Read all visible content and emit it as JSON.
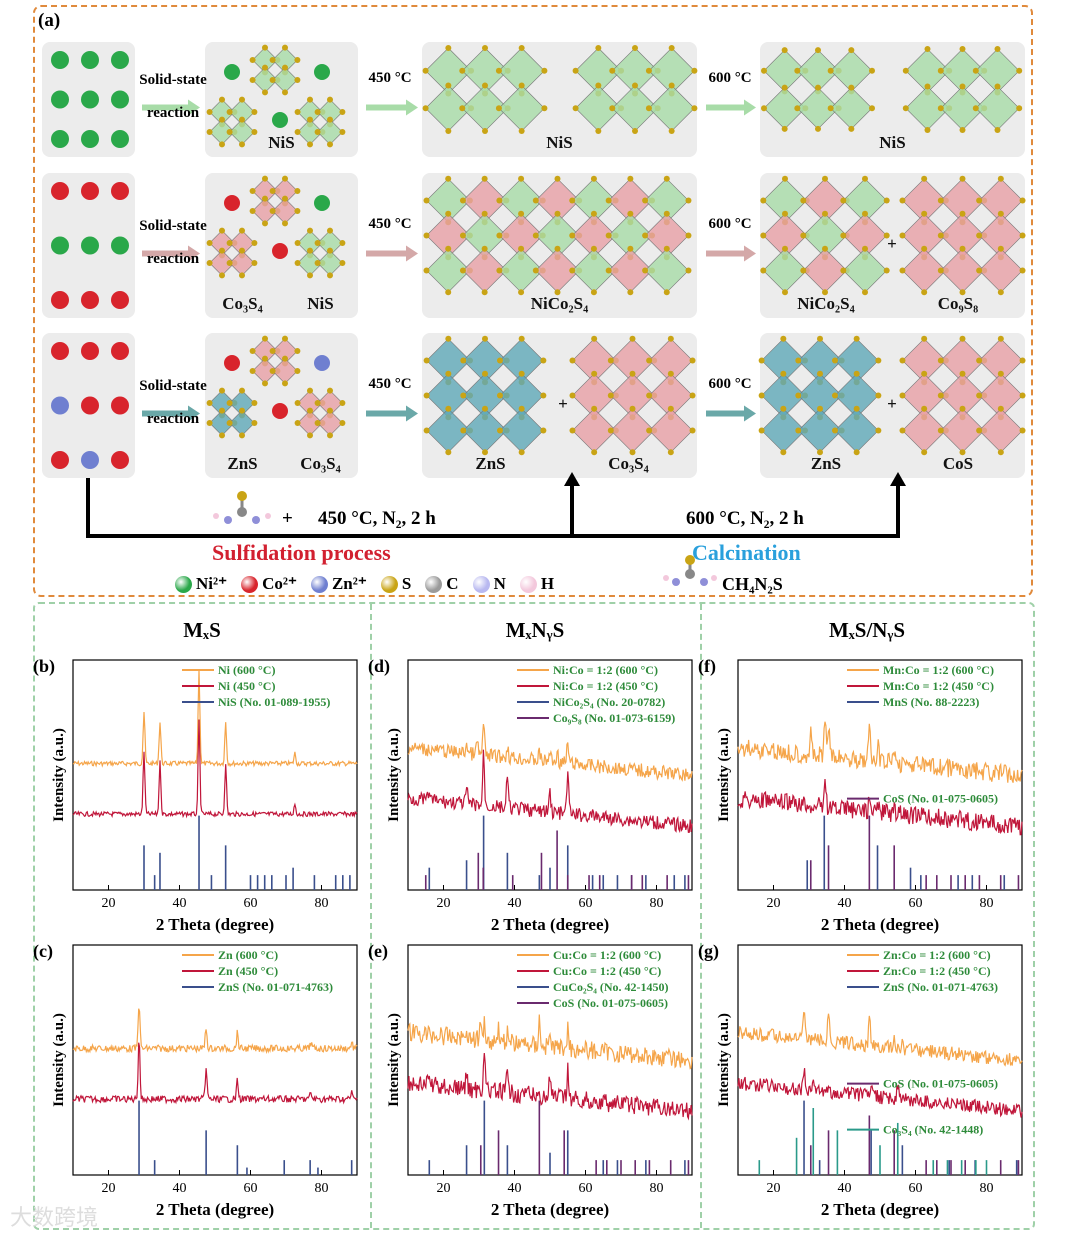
{
  "panel_a": {
    "letter": "(a)",
    "rows": [
      {
        "reaction": [
          "Solid-state",
          "reaction"
        ],
        "t1": "450 °C",
        "t2": "600 °C",
        "mid": [
          "NiS"
        ],
        "c450": [
          "NiS"
        ],
        "c600": [
          "NiS"
        ],
        "color450": "green",
        "color600": "green"
      },
      {
        "reaction": [
          "Solid-state",
          "reaction"
        ],
        "t1": "450 °C",
        "t2": "600 °C",
        "mid": [
          "Co₃S₄",
          "NiS"
        ],
        "c450": [
          "NiCo₂S₄"
        ],
        "c600": [
          "NiCo₂S₄",
          "Co₉S₈"
        ],
        "color450": "mix",
        "color600": "mix"
      },
      {
        "reaction": [
          "Solid-state",
          "reaction"
        ],
        "t1": "450 °C",
        "t2": "600 °C",
        "mid": [
          "ZnS",
          "Co₃S₄"
        ],
        "c450": [
          "ZnS",
          "Co₃S₄"
        ],
        "c600": [
          "ZnS",
          "CoS"
        ],
        "color450": "teal",
        "color600": "teal"
      }
    ],
    "plus": "+",
    "cond1": "450 °C, N₂, 2 h",
    "cond2": "600 °C, N₂, 2 h",
    "sulfidation": "Sulfidation process",
    "calcination": "Calcination",
    "legend": [
      {
        "label": "Ni²⁺",
        "color": "#2aa84a"
      },
      {
        "label": "Co²⁺",
        "color": "#d8242c"
      },
      {
        "label": "Zn²⁺",
        "color": "#6f7fd0"
      },
      {
        "label": "S",
        "color": "#c9a415"
      },
      {
        "label": "C",
        "color": "#9a9a9a"
      },
      {
        "label": "N",
        "color": "#b8b8f0"
      },
      {
        "label": "H",
        "color": "#f3c8dc"
      }
    ],
    "formula": "CH₄N₂S"
  },
  "columns": [
    "MₓS",
    "MₓNᵧS",
    "MₓS/NᵧS"
  ],
  "chart_data": [
    {
      "letter": "(b)",
      "type": "line",
      "xlabel": "2 Theta (degree)",
      "ylabel": "Intensity (a.u.)",
      "xlim": [
        10,
        90
      ],
      "xticks": [
        20,
        40,
        60,
        80
      ],
      "legend": [
        "Ni (600 °C)",
        "Ni (450 °C)",
        "NiS (No. 01-089-1955)"
      ],
      "series": [
        {
          "name": "Ni (600 °C)",
          "peaks": [
            [
              30,
              0.5
            ],
            [
              34.5,
              0.4
            ],
            [
              45.5,
              0.9
            ],
            [
              53,
              0.4
            ],
            [
              72.5,
              0.1
            ]
          ],
          "noise": 0.01
        },
        {
          "name": "Ni (450 °C)",
          "peaks": [
            [
              30,
              0.6
            ],
            [
              34.5,
              0.5
            ],
            [
              45.5,
              0.9
            ],
            [
              53,
              0.5
            ],
            [
              72.5,
              0.1
            ]
          ],
          "noise": 0.01
        }
      ],
      "refs": [
        {
          "name": "NiS",
          "color": "#3a4f8c",
          "pos": [
            [
              30,
              0.6
            ],
            [
              33,
              0.2
            ],
            [
              34.5,
              0.5
            ],
            [
              45.5,
              1
            ],
            [
              49,
              0.2
            ],
            [
              53,
              0.6
            ],
            [
              60,
              0.2
            ],
            [
              62,
              0.2
            ],
            [
              64,
              0.2
            ],
            [
              66,
              0.2
            ],
            [
              70,
              0.2
            ],
            [
              72,
              0.3
            ],
            [
              78,
              0.2
            ],
            [
              84,
              0.2
            ],
            [
              86,
              0.2
            ],
            [
              88,
              0.2
            ]
          ]
        }
      ]
    },
    {
      "letter": "(c)",
      "type": "line",
      "xlabel": "2 Theta (degree)",
      "ylabel": "Intensity (a.u.)",
      "xlim": [
        10,
        90
      ],
      "xticks": [
        20,
        40,
        60,
        80
      ],
      "legend": [
        "Zn (600 °C)",
        "Zn (450 °C)",
        "ZnS (No. 01-071-4763)"
      ],
      "series": [
        {
          "name": "Zn (600 °C)",
          "peaks": [
            [
              28.6,
              0.45
            ],
            [
              47.5,
              0.2
            ],
            [
              56.3,
              0.15
            ],
            [
              77,
              0.06
            ],
            [
              88.5,
              0.06
            ]
          ],
          "noise": 0.015
        },
        {
          "name": "Zn (450 °C)",
          "peaks": [
            [
              28.6,
              0.6
            ],
            [
              47.5,
              0.3
            ],
            [
              56.3,
              0.18
            ],
            [
              77,
              0.06
            ],
            [
              88.5,
              0.06
            ]
          ],
          "noise": 0.015
        }
      ],
      "refs": [
        {
          "name": "ZnS",
          "color": "#3a4f8c",
          "pos": [
            [
              28.6,
              1
            ],
            [
              33,
              0.2
            ],
            [
              47.5,
              0.6
            ],
            [
              56.3,
              0.4
            ],
            [
              59,
              0.1
            ],
            [
              69.5,
              0.2
            ],
            [
              76.8,
              0.2
            ],
            [
              79,
              0.1
            ],
            [
              88.5,
              0.2
            ]
          ]
        }
      ]
    },
    {
      "letter": "(d)",
      "type": "line",
      "xlabel": "2 Theta (degree)",
      "ylabel": "Intensity (a.u.)",
      "xlim": [
        10,
        90
      ],
      "xticks": [
        20,
        40,
        60,
        80
      ],
      "legend": [
        "Ni:Co = 1:2 (600 °C)",
        "Ni:Co = 1:2 (450 °C)",
        "NiCo₂S₄ (No. 20-0782)",
        "Co₉S₈ (No. 01-073-6159)"
      ],
      "series": [
        {
          "name": "Ni:Co = 1:2 (600 °C)",
          "peaks": [
            [
              26.5,
              0.1
            ],
            [
              29.5,
              0.12
            ],
            [
              31.3,
              0.3
            ],
            [
              38,
              0.1
            ],
            [
              47,
              0.08
            ],
            [
              50,
              0.1
            ],
            [
              52,
              0.1
            ],
            [
              55,
              0.2
            ]
          ],
          "noise": 0.03
        },
        {
          "name": "Ni:Co = 1:2 (450 °C)",
          "peaks": [
            [
              16,
              0.1
            ],
            [
              26.5,
              0.15
            ],
            [
              31.3,
              0.5
            ],
            [
              38,
              0.3
            ],
            [
              50,
              0.2
            ],
            [
              55,
              0.45
            ]
          ],
          "noise": 0.03
        }
      ],
      "refs": [
        {
          "name": "NiCo₂S₄",
          "color": "#3a4f8c",
          "pos": [
            [
              16,
              0.3
            ],
            [
              26.5,
              0.4
            ],
            [
              31.3,
              1
            ],
            [
              38,
              0.5
            ],
            [
              47,
              0.2
            ],
            [
              50,
              0.3
            ],
            [
              55,
              0.6
            ],
            [
              62,
              0.2
            ],
            [
              65,
              0.2
            ],
            [
              69,
              0.2
            ],
            [
              73,
              0.2
            ],
            [
              77,
              0.2
            ],
            [
              85,
              0.2
            ],
            [
              88,
              0.2
            ]
          ]
        },
        {
          "name": "Co₉S₈",
          "color": "#6a2a6e",
          "pos": [
            [
              15,
              0.2
            ],
            [
              29.8,
              0.5
            ],
            [
              31.2,
              0.3
            ],
            [
              39.5,
              0.2
            ],
            [
              47.6,
              0.5
            ],
            [
              52,
              0.8
            ],
            [
              55,
              0.2
            ],
            [
              61,
              0.2
            ],
            [
              64,
              0.2
            ],
            [
              73,
              0.2
            ],
            [
              76,
              0.2
            ],
            [
              83,
              0.2
            ],
            [
              89,
              0.2
            ]
          ]
        }
      ]
    },
    {
      "letter": "(e)",
      "type": "line",
      "xlabel": "2 Theta (degree)",
      "ylabel": "Intensity (a.u.)",
      "xlim": [
        10,
        90
      ],
      "xticks": [
        20,
        40,
        60,
        80
      ],
      "legend": [
        "Cu:Co = 1:2 (600 °C)",
        "Cu:Co = 1:2 (450 °C)",
        "CuCo₂S₄ (No. 42-1450)",
        "CoS (No. 01-075-0605)"
      ],
      "series": [
        {
          "name": "Cu:Co = 1:2 (600 °C)",
          "peaks": [
            [
              26.5,
              0.1
            ],
            [
              30.5,
              0.15
            ],
            [
              31.5,
              0.2
            ],
            [
              35.5,
              0.15
            ],
            [
              38,
              0.1
            ],
            [
              47,
              0.25
            ],
            [
              50,
              0.1
            ],
            [
              55,
              0.2
            ]
          ],
          "noise": 0.04
        },
        {
          "name": "Cu:Co = 1:2 (450 °C)",
          "peaks": [
            [
              16,
              0.1
            ],
            [
              26.5,
              0.15
            ],
            [
              31.5,
              0.45
            ],
            [
              38,
              0.2
            ],
            [
              50,
              0.2
            ],
            [
              55,
              0.3
            ]
          ],
          "noise": 0.04
        }
      ],
      "refs": [
        {
          "name": "CuCo₂S₄",
          "color": "#3a4f8c",
          "pos": [
            [
              16,
              0.2
            ],
            [
              26.5,
              0.4
            ],
            [
              31.5,
              1
            ],
            [
              38,
              0.4
            ],
            [
              50,
              0.3
            ],
            [
              55,
              0.6
            ],
            [
              65,
              0.2
            ],
            [
              69,
              0.2
            ],
            [
              77,
              0.2
            ],
            [
              88,
              0.2
            ]
          ]
        },
        {
          "name": "CoS",
          "color": "#6a2a6e",
          "pos": [
            [
              30.5,
              0.4
            ],
            [
              35.5,
              0.6
            ],
            [
              47,
              1
            ],
            [
              54,
              0.6
            ],
            [
              63,
              0.2
            ],
            [
              66,
              0.2
            ],
            [
              70,
              0.2
            ],
            [
              74,
              0.2
            ],
            [
              78,
              0.2
            ],
            [
              84,
              0.2
            ],
            [
              89,
              0.2
            ]
          ]
        }
      ]
    },
    {
      "letter": "(f)",
      "type": "line",
      "xlabel": "2 Theta (degree)",
      "ylabel": "Intensity (a.u.)",
      "xlim": [
        10,
        90
      ],
      "xticks": [
        20,
        40,
        60,
        80
      ],
      "legend": [
        "Mn:Co = 1:2 (600 °C)",
        "Mn:Co = 1:2 (450 °C)",
        "MnS (No. 88-2223)",
        "CoS (No. 01-075-0605)"
      ],
      "series": [
        {
          "name": "Mn:Co = 1:2 (600 °C)",
          "peaks": [
            [
              30.5,
              0.2
            ],
            [
              34.5,
              0.35
            ],
            [
              35.5,
              0.3
            ],
            [
              47,
              0.35
            ],
            [
              49.5,
              0.15
            ],
            [
              54,
              0.15
            ]
          ],
          "noise": 0.04
        },
        {
          "name": "Mn:Co = 1:2 (450 °C)",
          "peaks": [
            [
              34.5,
              0.35
            ],
            [
              47,
              0.1
            ],
            [
              49.5,
              0.08
            ],
            [
              54,
              0.05
            ]
          ],
          "noise": 0.04
        }
      ],
      "refs": [
        {
          "name": "MnS",
          "color": "#3a4f8c",
          "pos": [
            [
              29.5,
              0.4
            ],
            [
              34.3,
              1
            ],
            [
              49.3,
              0.6
            ],
            [
              58.6,
              0.3
            ],
            [
              61.5,
              0.2
            ],
            [
              72,
              0.2
            ],
            [
              76,
              0.2
            ],
            [
              85,
              0.2
            ]
          ]
        },
        {
          "name": "CoS",
          "color": "#6a2a6e",
          "pos": [
            [
              30.5,
              0.4
            ],
            [
              35.5,
              0.6
            ],
            [
              47,
              1
            ],
            [
              54,
              0.6
            ],
            [
              63,
              0.2
            ],
            [
              66,
              0.2
            ],
            [
              70,
              0.2
            ],
            [
              74,
              0.2
            ],
            [
              78,
              0.2
            ],
            [
              84,
              0.2
            ],
            [
              89,
              0.2
            ]
          ]
        }
      ]
    },
    {
      "letter": "(g)",
      "type": "line",
      "xlabel": "2 Theta (degree)",
      "ylabel": "Intensity (a.u.)",
      "xlim": [
        10,
        90
      ],
      "xticks": [
        20,
        40,
        60,
        80
      ],
      "legend": [
        "Zn:Co = 1:2 (600 °C)",
        "Zn:Co = 1:2 (450 °C)",
        "ZnS (No. 01-071-4763)",
        "CoS (No. 01-075-0605)",
        "Co₃S₄ (No. 42-1448)"
      ],
      "series": [
        {
          "name": "Zn:Co = 1:2 (600 °C)",
          "peaks": [
            [
              28.6,
              0.3
            ],
            [
              35.5,
              0.25
            ],
            [
              47,
              0.3
            ],
            [
              54,
              0.15
            ],
            [
              56.3,
              0.1
            ]
          ],
          "noise": 0.03
        },
        {
          "name": "Zn:Co = 1:2 (450 °C)",
          "peaks": [
            [
              28.6,
              0.2
            ],
            [
              31.5,
              0.08
            ],
            [
              47.5,
              0.12
            ],
            [
              55,
              0.12
            ]
          ],
          "noise": 0.03
        }
      ],
      "refs": [
        {
          "name": "ZnS",
          "color": "#3a4f8c",
          "pos": [
            [
              28.6,
              1
            ],
            [
              33,
              0.2
            ],
            [
              47.5,
              0.6
            ],
            [
              56.3,
              0.4
            ],
            [
              69.5,
              0.2
            ],
            [
              76.8,
              0.2
            ],
            [
              88.5,
              0.2
            ]
          ]
        },
        {
          "name": "CoS",
          "color": "#6a2a6e",
          "pos": [
            [
              30.5,
              0.4
            ],
            [
              35.5,
              0.6
            ],
            [
              47,
              0.8
            ],
            [
              54,
              0.6
            ],
            [
              63,
              0.2
            ],
            [
              66,
              0.2
            ],
            [
              70,
              0.2
            ],
            [
              74,
              0.2
            ],
            [
              84,
              0.2
            ],
            [
              89,
              0.2
            ]
          ]
        },
        {
          "name": "Co₃S₄",
          "color": "#2a9a8a",
          "pos": [
            [
              16,
              0.2
            ],
            [
              26.5,
              0.5
            ],
            [
              31.2,
              0.9
            ],
            [
              38,
              0.6
            ],
            [
              50,
              0.4
            ],
            [
              55,
              0.7
            ],
            [
              65,
              0.2
            ],
            [
              69,
              0.2
            ],
            [
              73,
              0.2
            ],
            [
              77,
              0.2
            ],
            [
              80,
              0.2
            ]
          ]
        }
      ]
    }
  ],
  "watermark": "大数跨境"
}
